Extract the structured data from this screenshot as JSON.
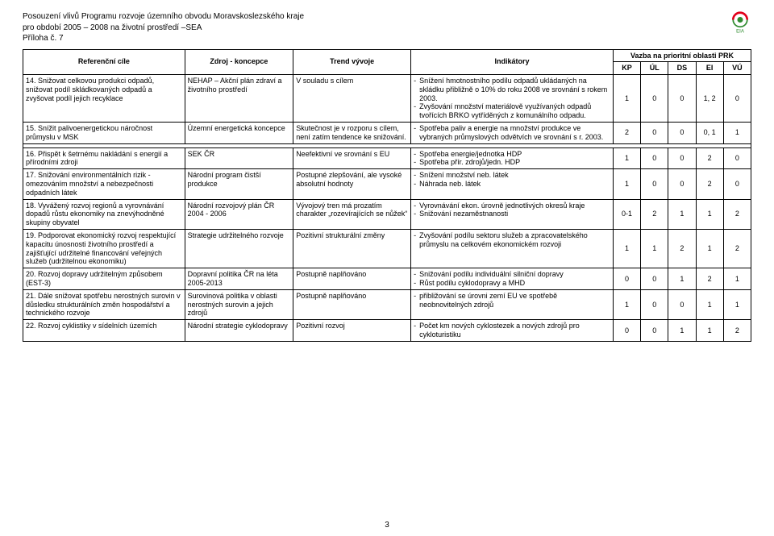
{
  "header": {
    "line1": "Posouzení vlivů Programu rozvoje územního obvodu Moravskoslezského kraje",
    "line2": "pro období 2005 – 2008 na životní prostředí –SEA",
    "line3": "Příloha č. 7"
  },
  "thead": {
    "ref": "Referenční cíle",
    "src": "Zdroj - koncepce",
    "trend": "Trend vývoje",
    "ind": "Indikátory",
    "group": "Vazba na prioritní oblasti PRK",
    "cols": [
      "KP",
      "ÚL",
      "DS",
      "EI",
      "VÚ"
    ]
  },
  "rows": [
    {
      "ref": "14. Snižovat celkovou produkci odpadů, snižovat podíl skládkovaných odpadů a zvyšovat podíl jejich recyklace",
      "src": "NEHAP – Akční plán zdraví a životního prostředí",
      "trend": "V souladu s cílem",
      "ind": [
        "Snížení hmotnostního podílu odpadů ukládaných na skládku přibližně o 10% do roku 2008 ve srovnání s rokem 2003.",
        "Zvyšování množství materiálově využívaných odpadů tvořících BRKO vytříděných z komunálního odpadu."
      ],
      "n": [
        "1",
        "0",
        "0",
        "1, 2",
        "0"
      ]
    },
    {
      "ref": "15. Snížit palivoenergetickou náročnost průmyslu v MSK",
      "src": "Územní energetická koncepce",
      "trend": "Skutečnost je v rozporu s cílem, není zatím tendence ke snižování.",
      "ind": [
        "Spotřeba paliv a energie na množství produkce ve vybraných průmyslových odvětvích ve srovnání s r. 2003."
      ],
      "n": [
        "2",
        "0",
        "0",
        "0, 1",
        "1"
      ]
    },
    {
      "ref": "16. Přispět k šetrnému nakládání s energií a přírodními zdroji",
      "src": "SEK ČR",
      "trend": "Neefektivní ve srovnání s EU",
      "ind": [
        "Spotřeba energie/jednotka HDP",
        "Spotřeba přír. zdrojů/jedn. HDP"
      ],
      "n": [
        "1",
        "0",
        "0",
        "2",
        "0"
      ]
    },
    {
      "ref": "17. Snižování environmentálních rizik - omezováním množství a nebezpečnosti odpadních látek",
      "src": "Národní program čistší produkce",
      "trend": "Postupné zlepšování, ale vysoké absolutní hodnoty",
      "ind": [
        "Snížení množství neb. látek",
        "Náhrada neb. látek"
      ],
      "n": [
        "1",
        "0",
        "0",
        "2",
        "0"
      ]
    },
    {
      "ref": "18. Vyvážený rozvoj regionů a vyrovnávání dopadů růstu ekonomiky na znevýhodněné skupiny obyvatel",
      "src": "Národní rozvojový plán ČR 2004 - 2006",
      "trend": "Vývojový tren má prozatím charakter „rozevírajících se nůžek“",
      "ind": [
        "Vyrovnávání ekon. úrovně jednotlivých okresů kraje",
        "Snižování nezaměstnanosti"
      ],
      "n": [
        "0-1",
        "2",
        "1",
        "1",
        "2"
      ]
    },
    {
      "ref": "19. Podporovat ekonomický rozvoj respektující kapacitu únosnosti životního prostředí a zajišťující udržitelné financování veřejných služeb (udržitelnou ekonomiku)",
      "src": "Strategie udržitelného rozvoje",
      "trend": "Pozitivní strukturální změny",
      "ind": [
        "Zvyšování podílu sektoru služeb a zpracovatelského průmyslu na celkovém ekonomickém rozvoji"
      ],
      "n": [
        "1",
        "1",
        "2",
        "1",
        "2"
      ]
    },
    {
      "ref": "20. Rozvoj dopravy udržitelným způsobem (EST-3)",
      "src": "Dopravní politika ČR na léta 2005-2013",
      "trend": "Postupně naplňováno",
      "ind": [
        "Snižování podílu individuální silniční dopravy",
        "Růst podílu cyklodopravy a MHD"
      ],
      "n": [
        "0",
        "0",
        "1",
        "2",
        "1"
      ]
    },
    {
      "ref": "21. Dále snižovat spotřebu nerostných surovin v důsledku strukturálních změn hospodářství  a technického rozvoje",
      "src": "Surovinová politika v oblasti nerostných surovin a jejich zdrojů",
      "trend": "Postupně naplňováno",
      "ind": [
        "přibližování se úrovni zemí EU ve spotřebě neobnovitelných zdrojů"
      ],
      "n": [
        "1",
        "0",
        "0",
        "1",
        "1"
      ]
    },
    {
      "ref": "22. Rozvoj cyklistiky v sídelních územích",
      "src": "Národní strategie cyklodopravy",
      "trend": "Pozitivní rozvoj",
      "ind": [
        "Počet km nových cyklostezek a nových zdrojů pro cykloturistiku"
      ],
      "n": [
        "0",
        "0",
        "1",
        "1",
        "2"
      ]
    }
  ],
  "spacerAfter": 1,
  "pageNumber": "3",
  "logo": {
    "bg": "#ffffff",
    "ring": "#e2001a",
    "inner": "#2e8b2e",
    "text": "#2e8b2e"
  }
}
